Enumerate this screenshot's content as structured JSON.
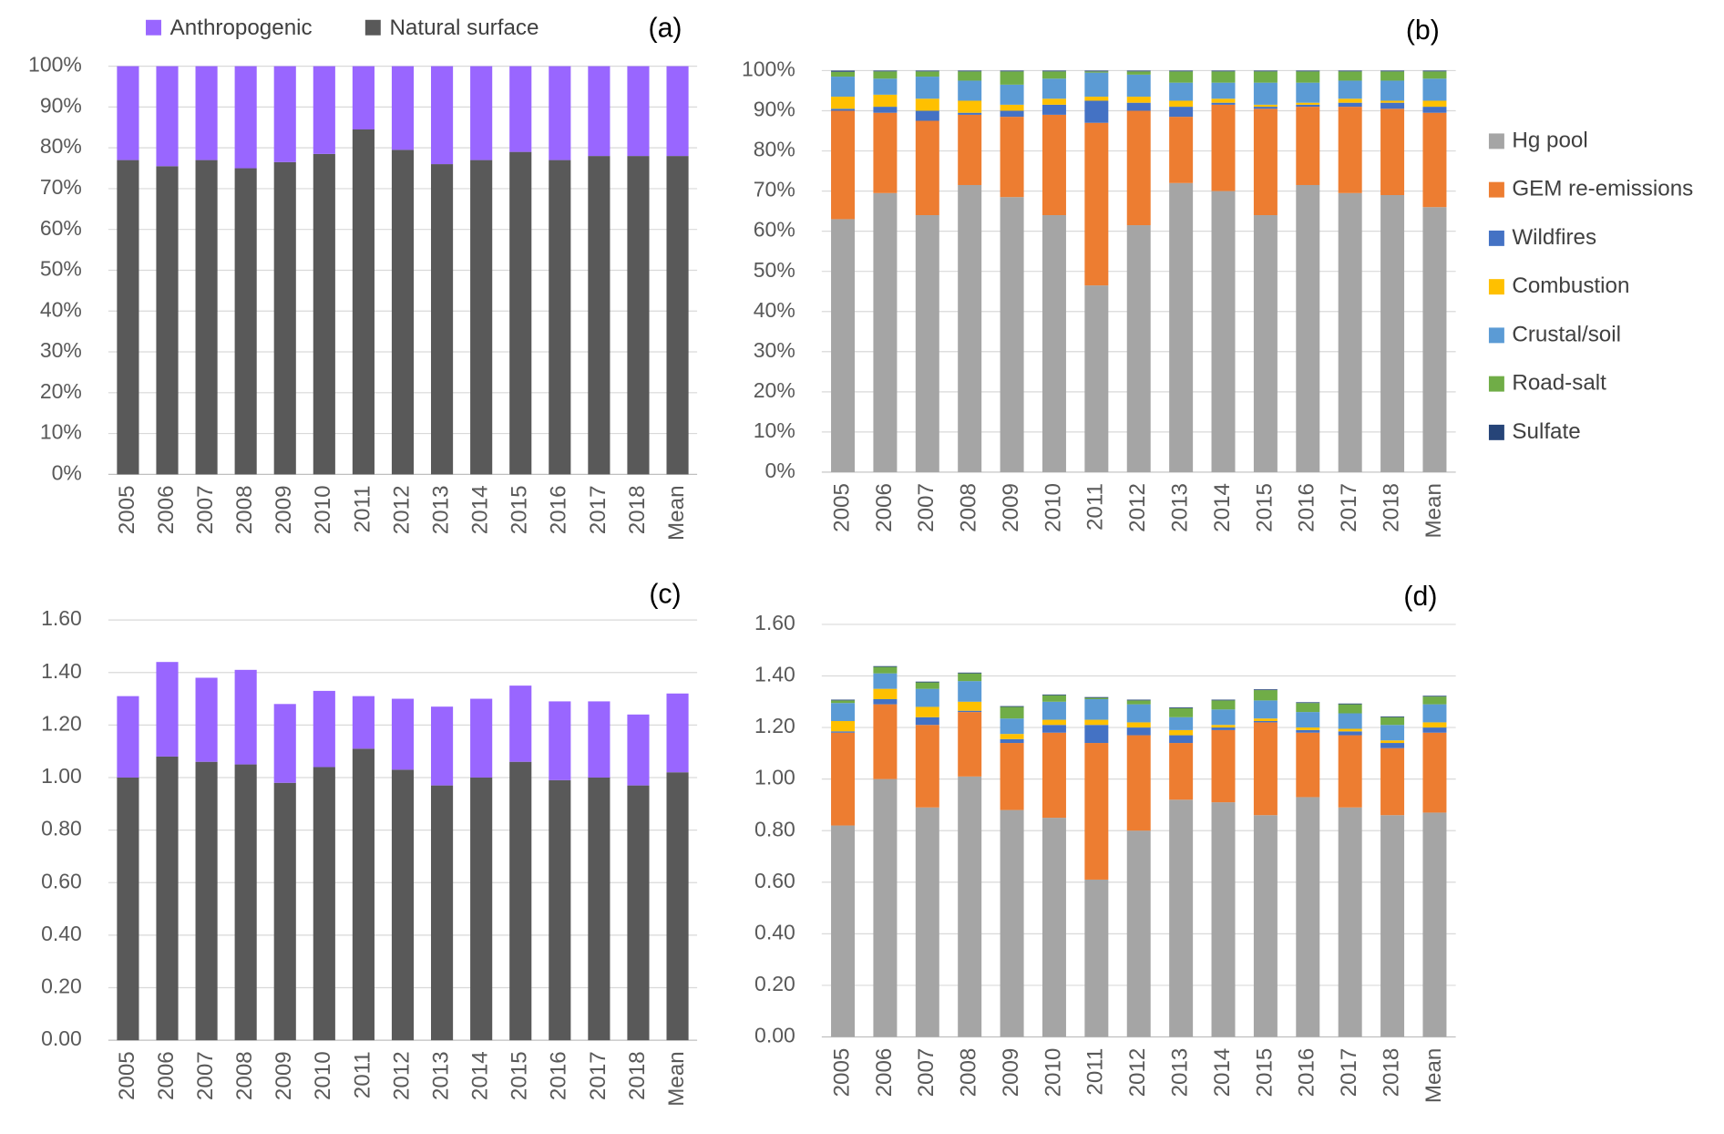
{
  "chart_data": [
    {
      "type": "bar",
      "stacked": true,
      "title": "(a)",
      "legend": "top",
      "categories": [
        "2005",
        "2006",
        "2007",
        "2008",
        "2009",
        "2010",
        "2011",
        "2012",
        "2013",
        "2014",
        "2015",
        "2016",
        "2017",
        "2018",
        "Mean"
      ],
      "series": [
        {
          "name": "Natural surface",
          "color": "#595959",
          "values": [
            77,
            75.5,
            77,
            75,
            76.5,
            78.5,
            84.5,
            79.5,
            76,
            77,
            79,
            77,
            78,
            78,
            78
          ]
        },
        {
          "name": "Anthropogenic",
          "color": "#9966ff",
          "values": [
            23,
            24.5,
            23,
            25,
            23.5,
            21.5,
            15.5,
            20.5,
            24,
            23,
            21,
            23,
            22,
            22,
            22
          ]
        }
      ],
      "ylim": [
        0,
        100
      ],
      "yticks": [
        {
          "value": 0,
          "label": "0%"
        },
        {
          "value": 10,
          "label": "10%"
        },
        {
          "value": 20,
          "label": "20%"
        },
        {
          "value": 30,
          "label": "30%"
        },
        {
          "value": 40,
          "label": "40%"
        },
        {
          "value": 50,
          "label": "50%"
        },
        {
          "value": 60,
          "label": "60%"
        },
        {
          "value": 70,
          "label": "70%"
        },
        {
          "value": 80,
          "label": "80%"
        },
        {
          "value": 90,
          "label": "90%"
        },
        {
          "value": 100,
          "label": "100%"
        }
      ],
      "grid": true
    },
    {
      "type": "bar",
      "stacked": true,
      "title": "(b)",
      "legend": "right",
      "categories": [
        "2005",
        "2006",
        "2007",
        "2008",
        "2009",
        "2010",
        "2011",
        "2012",
        "2013",
        "2014",
        "2015",
        "2016",
        "2017",
        "2018",
        "Mean"
      ],
      "series": [
        {
          "name": "Hg pool",
          "color": "#a5a5a5",
          "values": [
            63,
            69.5,
            64,
            71.5,
            68.5,
            64,
            46.5,
            61.5,
            72,
            70,
            64,
            71.5,
            69.5,
            69,
            66
          ]
        },
        {
          "name": "GEM re-emissions",
          "color": "#ed7d31",
          "values": [
            27,
            20,
            23.5,
            17.5,
            20,
            25,
            40.5,
            28.5,
            16.5,
            21.5,
            26.5,
            19.5,
            21.5,
            21.5,
            23.5
          ]
        },
        {
          "name": "Wildfires",
          "color": "#4472c4",
          "values": [
            0.5,
            1.5,
            2.5,
            0.5,
            1.5,
            2.5,
            5.5,
            2,
            2.5,
            0.5,
            0.5,
            0.5,
            1,
            1.5,
            1.5
          ]
        },
        {
          "name": "Combustion",
          "color": "#ffc000",
          "values": [
            3,
            3,
            3,
            3,
            1.5,
            1.5,
            1,
            1.5,
            1.5,
            1,
            0.5,
            0.5,
            1,
            0.5,
            1.5
          ]
        },
        {
          "name": "Crustal/soil",
          "color": "#5b9bd5",
          "values": [
            5,
            4,
            5.5,
            5,
            5,
            5,
            6,
            5.5,
            4.5,
            4,
            5.5,
            5,
            4.5,
            5,
            5.5
          ]
        },
        {
          "name": "Road-salt",
          "color": "#70ad47",
          "values": [
            1.2,
            1.8,
            1.3,
            2.3,
            3.3,
            1.8,
            0.3,
            0.8,
            2.8,
            2.8,
            2.8,
            2.8,
            2.3,
            2.3,
            1.8
          ]
        },
        {
          "name": "Sulfate",
          "color": "#264478",
          "values": [
            0.3,
            0.2,
            0.2,
            0.2,
            0.2,
            0.2,
            0.2,
            0.2,
            0.2,
            0.2,
            0.2,
            0.2,
            0.2,
            0.2,
            0.2
          ]
        }
      ],
      "ylim": [
        0,
        100
      ],
      "yticks": [
        {
          "value": 0,
          "label": "0%"
        },
        {
          "value": 10,
          "label": "10%"
        },
        {
          "value": 20,
          "label": "20%"
        },
        {
          "value": 30,
          "label": "30%"
        },
        {
          "value": 40,
          "label": "40%"
        },
        {
          "value": 50,
          "label": "50%"
        },
        {
          "value": 60,
          "label": "60%"
        },
        {
          "value": 70,
          "label": "70%"
        },
        {
          "value": 80,
          "label": "80%"
        },
        {
          "value": 90,
          "label": "90%"
        },
        {
          "value": 100,
          "label": "100%"
        }
      ],
      "grid": true
    },
    {
      "type": "bar",
      "stacked": true,
      "title": "(c)",
      "categories": [
        "2005",
        "2006",
        "2007",
        "2008",
        "2009",
        "2010",
        "2011",
        "2012",
        "2013",
        "2014",
        "2015",
        "2016",
        "2017",
        "2018",
        "Mean"
      ],
      "series": [
        {
          "color": "#595959",
          "values": [
            1.0,
            1.08,
            1.06,
            1.05,
            0.98,
            1.04,
            1.11,
            1.03,
            0.97,
            1.0,
            1.06,
            0.99,
            1.0,
            0.97,
            1.02
          ]
        },
        {
          "color": "#9966ff",
          "values": [
            0.31,
            0.36,
            0.32,
            0.36,
            0.3,
            0.29,
            0.2,
            0.27,
            0.3,
            0.3,
            0.29,
            0.3,
            0.29,
            0.27,
            0.3
          ]
        }
      ],
      "ylim": [
        0,
        1.6
      ],
      "yticks": [
        {
          "value": 0,
          "label": "0.00"
        },
        {
          "value": 0.2,
          "label": "0.20"
        },
        {
          "value": 0.4,
          "label": "0.40"
        },
        {
          "value": 0.6,
          "label": "0.60"
        },
        {
          "value": 0.8,
          "label": "0.80"
        },
        {
          "value": 1,
          "label": "1.00"
        },
        {
          "value": 1.2,
          "label": "1.20"
        },
        {
          "value": 1.4,
          "label": "1.40"
        },
        {
          "value": 1.6,
          "label": "1.60"
        }
      ],
      "grid": true
    },
    {
      "type": "bar",
      "stacked": true,
      "title": "(d)",
      "categories": [
        "2005",
        "2006",
        "2007",
        "2008",
        "2009",
        "2010",
        "2011",
        "2012",
        "2013",
        "2014",
        "2015",
        "2016",
        "2017",
        "2018",
        "Mean"
      ],
      "series": [
        {
          "color": "#a5a5a5",
          "values": [
            0.82,
            1.0,
            0.89,
            1.01,
            0.88,
            0.85,
            0.61,
            0.8,
            0.92,
            0.91,
            0.86,
            0.93,
            0.89,
            0.86,
            0.87
          ]
        },
        {
          "color": "#ed7d31",
          "values": [
            0.36,
            0.29,
            0.32,
            0.25,
            0.26,
            0.33,
            0.53,
            0.37,
            0.22,
            0.28,
            0.36,
            0.25,
            0.28,
            0.26,
            0.31
          ]
        },
        {
          "color": "#4472c4",
          "values": [
            0.005,
            0.02,
            0.03,
            0.005,
            0.015,
            0.03,
            0.07,
            0.03,
            0.03,
            0.01,
            0.005,
            0.01,
            0.015,
            0.02,
            0.02
          ]
        },
        {
          "color": "#ffc000",
          "values": [
            0.04,
            0.04,
            0.04,
            0.035,
            0.02,
            0.02,
            0.02,
            0.02,
            0.02,
            0.01,
            0.01,
            0.01,
            0.01,
            0.01,
            0.02
          ]
        },
        {
          "color": "#5b9bd5",
          "values": [
            0.07,
            0.06,
            0.07,
            0.08,
            0.06,
            0.07,
            0.08,
            0.07,
            0.05,
            0.06,
            0.07,
            0.06,
            0.06,
            0.06,
            0.07
          ]
        },
        {
          "color": "#70ad47",
          "values": [
            0.01,
            0.025,
            0.025,
            0.03,
            0.045,
            0.025,
            0.005,
            0.015,
            0.035,
            0.035,
            0.04,
            0.035,
            0.035,
            0.03,
            0.03
          ]
        },
        {
          "color": "#264478",
          "values": [
            0.003,
            0.003,
            0.003,
            0.003,
            0.003,
            0.003,
            0.003,
            0.003,
            0.003,
            0.003,
            0.003,
            0.003,
            0.003,
            0.003,
            0.003
          ]
        }
      ],
      "ylim": [
        0,
        1.6
      ],
      "yticks": [
        {
          "value": 0,
          "label": "0.00"
        },
        {
          "value": 0.2,
          "label": "0.20"
        },
        {
          "value": 0.4,
          "label": "0.40"
        },
        {
          "value": 0.6,
          "label": "0.60"
        },
        {
          "value": 0.8,
          "label": "0.80"
        },
        {
          "value": 1,
          "label": "1.00"
        },
        {
          "value": 1.2,
          "label": "1.20"
        },
        {
          "value": 1.4,
          "label": "1.40"
        },
        {
          "value": 1.6,
          "label": "1.60"
        }
      ],
      "grid": true
    }
  ]
}
